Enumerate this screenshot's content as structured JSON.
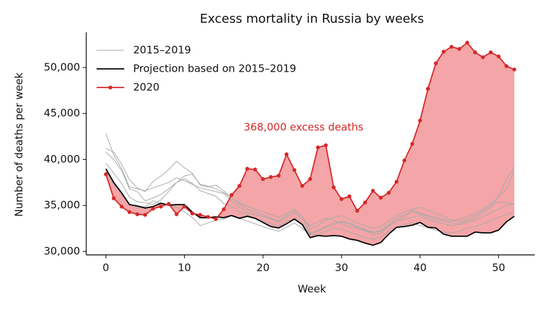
{
  "chart_data": {
    "type": "line",
    "title": "Excess mortality in Russia by weeks",
    "x_label": "Week",
    "y_label": "Number of deaths per week",
    "annotation": {
      "text": "368,000 excess deaths",
      "color": "#d62728"
    },
    "x": [
      0,
      1,
      2,
      3,
      4,
      5,
      6,
      7,
      8,
      9,
      10,
      11,
      12,
      13,
      14,
      15,
      16,
      17,
      18,
      19,
      20,
      21,
      22,
      23,
      24,
      25,
      26,
      27,
      28,
      29,
      30,
      31,
      32,
      33,
      34,
      35,
      36,
      37,
      38,
      39,
      40,
      41,
      42,
      43,
      44,
      45,
      46,
      47,
      48,
      49,
      50,
      51,
      52
    ],
    "xlim": [
      -2.5,
      54.6
    ],
    "xticks": [
      0,
      10,
      20,
      30,
      40,
      50
    ],
    "ylim": [
      29620,
      53820
    ],
    "yticks": [
      {
        "value": 30000,
        "label": "30,000"
      },
      {
        "value": 35000,
        "label": "35,000"
      },
      {
        "value": 40000,
        "label": "40,000"
      },
      {
        "value": 45000,
        "label": "45,000"
      },
      {
        "value": 50000,
        "label": "50,000"
      }
    ],
    "legend": "upper left",
    "fill_color": "#f4a5a7",
    "background_lines": {
      "name": "2015–2019",
      "color": "#aaaaaa",
      "lines": [
        [
          42800,
          40500,
          39000,
          37000,
          36800,
          36600,
          36900,
          37200,
          37500,
          38000,
          37700,
          37300,
          36900,
          36700,
          36500,
          36300,
          35500,
          34800,
          34200,
          34000,
          33800,
          33500,
          33200,
          33700,
          34200,
          33500,
          32800,
          33200,
          33600,
          33400,
          33000,
          32700,
          32500,
          32300,
          32000,
          32200,
          32800,
          33300,
          33500,
          33700,
          33900,
          33500,
          33200,
          33000,
          32800,
          33000,
          33300,
          33600,
          34200,
          34800,
          36000,
          37800,
          39200
        ],
        [
          41200,
          40800,
          39500,
          37800,
          36900,
          36500,
          37600,
          38200,
          38900,
          39800,
          39100,
          38500,
          37200,
          37000,
          37200,
          36600,
          35800,
          35200,
          34600,
          34300,
          34000,
          33600,
          33300,
          33900,
          34400,
          33800,
          32000,
          32200,
          32600,
          32900,
          33300,
          33100,
          32700,
          32400,
          32100,
          32300,
          32900,
          33600,
          34000,
          34300,
          34100,
          33800,
          33500,
          33300,
          33100,
          32900,
          33100,
          33400,
          33800,
          34200,
          34600,
          35000,
          35200
        ],
        [
          40800,
          40000,
          38800,
          36800,
          36500,
          35500,
          35800,
          36200,
          36800,
          37500,
          37900,
          37400,
          36600,
          36300,
          36000,
          35200,
          34900,
          34300,
          34000,
          33600,
          33300,
          33000,
          32800,
          33200,
          33600,
          33000,
          31900,
          32300,
          32700,
          33100,
          33200,
          33000,
          32600,
          32200,
          31800,
          32000,
          32700,
          33300,
          33800,
          34500,
          34200,
          33900,
          33700,
          33500,
          33300,
          33500,
          33800,
          34100,
          34600,
          35200,
          35900,
          36800,
          38800
        ],
        [
          39600,
          38500,
          37400,
          35900,
          35400,
          35300,
          35100,
          35600,
          36500,
          37500,
          38200,
          38400,
          37300,
          37100,
          36800,
          36400,
          35800,
          35300,
          34900,
          34600,
          34300,
          34000,
          33700,
          34100,
          34600,
          33700,
          32500,
          32800,
          33400,
          33700,
          33900,
          33500,
          33100,
          32800,
          32500,
          32700,
          33300,
          33900,
          34300,
          34600,
          34800,
          34500,
          34100,
          33800,
          33400,
          33200,
          33500,
          33900,
          34400,
          35000,
          35400,
          35300,
          35100
        ],
        [
          38700,
          37300,
          36200,
          35200,
          34700,
          34900,
          35500,
          35200,
          35000,
          34800,
          34300,
          33700,
          32800,
          33100,
          33400,
          33500,
          33900,
          33600,
          33300,
          33000,
          32700,
          32400,
          32200,
          32600,
          33100,
          32500,
          31800,
          31900,
          32200,
          32500,
          32400,
          32100,
          31800,
          31500,
          31300,
          31600,
          32200,
          32600,
          32900,
          33100,
          32800,
          32600,
          32300,
          32100,
          32000,
          32200,
          32500,
          32700,
          33000,
          33300,
          33700,
          34000,
          34300
        ]
      ]
    },
    "series": [
      {
        "name": "Projection based on 2015–2019",
        "color": "#000000",
        "markers": false,
        "values": [
          38990,
          37490,
          36370,
          35090,
          34940,
          34720,
          34870,
          35240,
          35020,
          35090,
          35090,
          34270,
          33670,
          33670,
          33750,
          33670,
          33900,
          33600,
          33820,
          33600,
          33150,
          32700,
          32550,
          33000,
          33520,
          32920,
          31500,
          31720,
          31650,
          31720,
          31650,
          31350,
          31200,
          30900,
          30670,
          30970,
          31870,
          32620,
          32700,
          32850,
          33150,
          32620,
          32550,
          31870,
          31650,
          31650,
          31650,
          32100,
          32020,
          32020,
          32320,
          33220,
          33820
        ]
      },
      {
        "name": "2020",
        "color": "#d62728",
        "markers": true,
        "values": [
          38390,
          35770,
          34870,
          34270,
          34040,
          33970,
          34640,
          34870,
          35170,
          34040,
          34870,
          34120,
          33970,
          33750,
          33520,
          34570,
          36140,
          37120,
          38990,
          38910,
          37870,
          38090,
          38240,
          40560,
          38840,
          37120,
          37870,
          41310,
          41540,
          36970,
          35690,
          35990,
          34420,
          35320,
          36590,
          35840,
          36370,
          37570,
          39890,
          41690,
          44230,
          47680,
          50450,
          51720,
          52250,
          52020,
          52700,
          51650,
          51120,
          51650,
          51200,
          50150,
          49780
        ]
      }
    ]
  }
}
